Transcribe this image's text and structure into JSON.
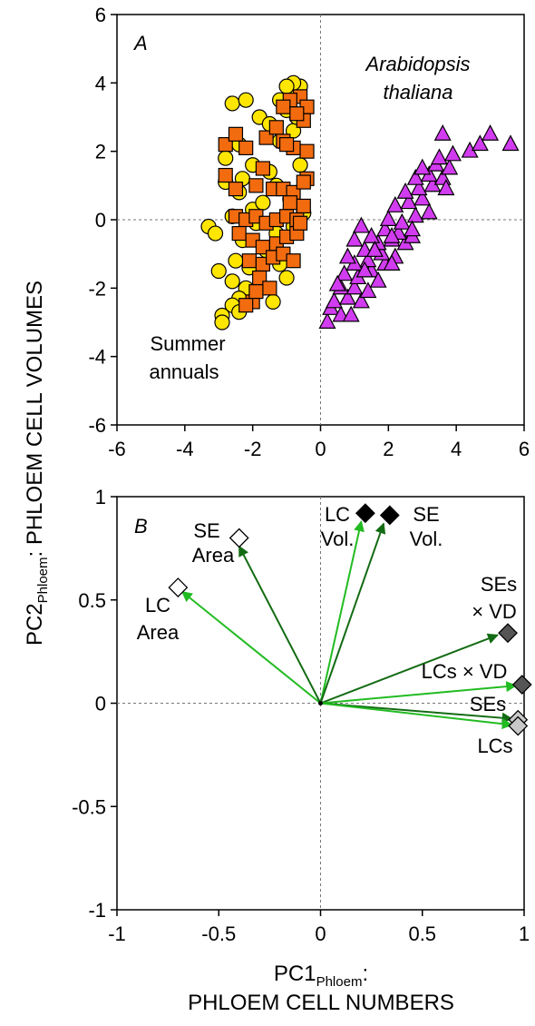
{
  "chart_data": [
    {
      "panel": "A",
      "type": "scatter",
      "xlim": [
        -6,
        6
      ],
      "ylim": [
        -6,
        6
      ],
      "xticks": [
        "-6",
        "-4",
        "-2",
        "0",
        "2",
        "4",
        "6"
      ],
      "yticks": [
        "6",
        "4",
        "2",
        "0",
        "-2",
        "-4",
        "-6"
      ],
      "reference_lines": {
        "x": 0,
        "y": 0,
        "style": "dashed"
      },
      "labels": {
        "arabidopsis_line1": "Arabidopsis",
        "arabidopsis_line2": "thaliana",
        "summer_line1": "Summer",
        "summer_line2": "annuals"
      },
      "colors": {
        "circles": "#ffe600",
        "squares": "#f26b0f",
        "triangles": "#d23cf0"
      },
      "series": [
        {
          "marker": "circle",
          "points": [
            [
              -2.6,
              3.4
            ],
            [
              -2.2,
              3.5
            ],
            [
              -1.8,
              3.0
            ],
            [
              -1.5,
              2.8
            ],
            [
              -2.4,
              2.2
            ],
            [
              -2.0,
              1.6
            ],
            [
              -2.8,
              1.1
            ],
            [
              -2.4,
              0.8
            ],
            [
              -2.0,
              0.3
            ],
            [
              -2.6,
              0.1
            ],
            [
              -3.3,
              -0.2
            ],
            [
              -3.1,
              -0.4
            ],
            [
              -2.3,
              -0.6
            ],
            [
              -2.5,
              -1.2
            ],
            [
              -3.0,
              -1.5
            ],
            [
              -2.6,
              -1.8
            ],
            [
              -2.2,
              -2.0
            ],
            [
              -2.4,
              -2.3
            ],
            [
              -2.6,
              -2.5
            ],
            [
              -2.4,
              -2.7
            ],
            [
              -2.9,
              -2.8
            ],
            [
              -2.9,
              -3.0
            ],
            [
              -1.6,
              -0.9
            ],
            [
              -1.2,
              -1.3
            ],
            [
              -1.3,
              -0.4
            ],
            [
              -1.7,
              0.5
            ],
            [
              -1.3,
              1.0
            ],
            [
              -0.9,
              0.6
            ],
            [
              -0.8,
              -0.2
            ],
            [
              -0.5,
              0.2
            ],
            [
              -1.5,
              1.4
            ],
            [
              -1.2,
              2.3
            ],
            [
              -0.8,
              2.6
            ],
            [
              -0.7,
              3.0
            ],
            [
              -1.0,
              3.2
            ],
            [
              -0.8,
              3.6
            ],
            [
              -0.6,
              3.9
            ],
            [
              -0.8,
              4.0
            ],
            [
              -1.0,
              3.9
            ],
            [
              -1.2,
              3.5
            ],
            [
              -2.1,
              -1.4
            ],
            [
              -1.9,
              -0.1
            ],
            [
              -2.8,
              1.8
            ],
            [
              -2.3,
              1.2
            ],
            [
              -0.6,
              1.6
            ],
            [
              -1.0,
              -1.7
            ],
            [
              -1.4,
              -2.4
            ]
          ]
        },
        {
          "marker": "square",
          "points": [
            [
              -2.8,
              2.2
            ],
            [
              -2.5,
              2.5
            ],
            [
              -2.2,
              2.1
            ],
            [
              -1.7,
              1.5
            ],
            [
              -2.8,
              1.3
            ],
            [
              -2.5,
              0.9
            ],
            [
              -1.9,
              1.0
            ],
            [
              -1.4,
              0.9
            ],
            [
              -1.1,
              0.9
            ],
            [
              -0.8,
              0.8
            ],
            [
              -2.5,
              0.1
            ],
            [
              -2.2,
              0.0
            ],
            [
              -1.9,
              0.1
            ],
            [
              -1.6,
              -0.1
            ],
            [
              -1.3,
              0.0
            ],
            [
              -1.0,
              0.1
            ],
            [
              -0.7,
              0.0
            ],
            [
              -2.4,
              -0.4
            ],
            [
              -2.0,
              -0.6
            ],
            [
              -1.7,
              -0.8
            ],
            [
              -1.3,
              -0.7
            ],
            [
              -1.0,
              -0.5
            ],
            [
              -0.7,
              -0.4
            ],
            [
              -2.1,
              -1.2
            ],
            [
              -1.7,
              -1.3
            ],
            [
              -1.4,
              -1.1
            ],
            [
              -1.1,
              -1.0
            ],
            [
              -0.8,
              -1.2
            ],
            [
              -1.8,
              -1.7
            ],
            [
              -1.5,
              -2.0
            ],
            [
              -2.0,
              -2.4
            ],
            [
              -2.2,
              -2.5
            ],
            [
              -1.9,
              -2.1
            ],
            [
              -0.6,
              -0.1
            ],
            [
              -0.5,
              0.4
            ],
            [
              -0.9,
              0.5
            ],
            [
              -0.4,
              1.2
            ],
            [
              -0.5,
              1.1
            ],
            [
              -0.8,
              2.1
            ],
            [
              -1.1,
              2.3
            ],
            [
              -1.6,
              2.4
            ],
            [
              -0.4,
              2.0
            ],
            [
              -0.6,
              3.6
            ],
            [
              -0.9,
              3.5
            ],
            [
              -1.1,
              3.3
            ],
            [
              -0.4,
              3.3
            ],
            [
              -0.5,
              2.9
            ],
            [
              -0.7,
              3.1
            ],
            [
              -1.0,
              2.2
            ],
            [
              -1.3,
              2.7
            ]
          ]
        },
        {
          "marker": "triangle",
          "points": [
            [
              0.2,
              -3.0
            ],
            [
              0.3,
              -2.6
            ],
            [
              0.6,
              -2.8
            ],
            [
              0.9,
              -2.8
            ],
            [
              0.4,
              -2.4
            ],
            [
              0.8,
              -2.3
            ],
            [
              1.2,
              -2.4
            ],
            [
              0.6,
              -2.0
            ],
            [
              1.0,
              -2.0
            ],
            [
              1.4,
              -2.1
            ],
            [
              0.7,
              -1.6
            ],
            [
              1.1,
              -1.7
            ],
            [
              1.5,
              -1.5
            ],
            [
              1.9,
              -1.3
            ],
            [
              1.0,
              -1.3
            ],
            [
              1.4,
              -1.2
            ],
            [
              1.8,
              -1.0
            ],
            [
              2.2,
              -1.1
            ],
            [
              1.3,
              -0.9
            ],
            [
              1.7,
              -0.7
            ],
            [
              2.1,
              -0.6
            ],
            [
              2.5,
              -0.7
            ],
            [
              1.5,
              -0.5
            ],
            [
              1.9,
              -0.3
            ],
            [
              2.3,
              -0.4
            ],
            [
              2.7,
              -0.5
            ],
            [
              1.2,
              -0.2
            ],
            [
              2.0,
              0.0
            ],
            [
              2.4,
              -0.1
            ],
            [
              2.8,
              0.1
            ],
            [
              2.2,
              0.4
            ],
            [
              2.6,
              0.5
            ],
            [
              3.0,
              0.6
            ],
            [
              2.5,
              0.8
            ],
            [
              2.9,
              0.9
            ],
            [
              3.3,
              1.0
            ],
            [
              2.8,
              1.2
            ],
            [
              3.2,
              1.3
            ],
            [
              3.6,
              1.2
            ],
            [
              3.0,
              1.5
            ],
            [
              3.4,
              1.6
            ],
            [
              3.8,
              1.5
            ],
            [
              3.5,
              1.8
            ],
            [
              3.9,
              1.9
            ],
            [
              4.4,
              2.0
            ],
            [
              4.7,
              2.2
            ],
            [
              5.0,
              2.5
            ],
            [
              5.6,
              2.2
            ],
            [
              3.6,
              2.5
            ],
            [
              1.0,
              -0.6
            ],
            [
              1.3,
              -1.5
            ],
            [
              1.7,
              -1.8
            ],
            [
              2.1,
              -1.3
            ],
            [
              0.8,
              -1.1
            ],
            [
              1.6,
              -0.9
            ],
            [
              2.7,
              -0.3
            ],
            [
              3.2,
              0.2
            ],
            [
              0.5,
              -1.9
            ],
            [
              2.1,
              -0.5
            ],
            [
              3.7,
              0.9
            ]
          ]
        }
      ]
    },
    {
      "panel": "B",
      "type": "scatter",
      "xlim": [
        -1,
        1
      ],
      "ylim": [
        -1,
        1
      ],
      "xticks": [
        "-1",
        "-0.5",
        "0",
        "0.5",
        "1"
      ],
      "yticks": [
        "1",
        "0.5",
        "0",
        "-0.5",
        "-1"
      ],
      "reference_lines": {
        "x": 0,
        "y": 0,
        "style": "dashed"
      },
      "colors": {
        "light_arrow": "#22bb22",
        "dark_arrow": "#136b13",
        "white_marker": "#ffffff",
        "black_marker": "#000000",
        "dark_gray_marker": "#555555",
        "light_gray_marker": "#c8c8c8"
      },
      "vectors": [
        {
          "name": "LC Area",
          "x": -0.7,
          "y": 0.56,
          "arrow_end": [
            -0.68,
            0.54
          ],
          "arrow": "light",
          "fill": "white"
        },
        {
          "name": "SE Area",
          "x": -0.4,
          "y": 0.8,
          "arrow_end": [
            -0.4,
            0.76
          ],
          "arrow": "dark",
          "fill": "white"
        },
        {
          "name": "LC Vol.",
          "x": 0.22,
          "y": 0.92,
          "arrow_end": [
            0.2,
            0.88
          ],
          "arrow": "light",
          "fill": "black"
        },
        {
          "name": "SE Vol.",
          "x": 0.34,
          "y": 0.91,
          "arrow_end": [
            0.31,
            0.87
          ],
          "arrow": "dark",
          "fill": "black"
        },
        {
          "name": "SEs × VD",
          "x": 0.92,
          "y": 0.34,
          "arrow_end": [
            0.87,
            0.33
          ],
          "arrow": "dark",
          "fill": "darkgray"
        },
        {
          "name": "LCs × VD",
          "x": 0.99,
          "y": 0.09,
          "arrow_end": [
            0.96,
            0.085
          ],
          "arrow": "light",
          "fill": "darkgray"
        },
        {
          "name": "SEs",
          "x": 0.97,
          "y": -0.08,
          "arrow_end": [
            0.94,
            -0.075
          ],
          "arrow": "dark",
          "fill": "lightgray"
        },
        {
          "name": "LCs",
          "x": 0.97,
          "y": -0.11,
          "arrow_end": [
            0.94,
            -0.105
          ],
          "arrow": "light",
          "fill": "lightgray"
        }
      ],
      "labels": {
        "se_area_1": "SE",
        "se_area_2": "Area",
        "lc_area_1": "LC",
        "lc_area_2": "Area",
        "lc_vol_1": "LC",
        "lc_vol_2": "Vol.",
        "se_vol_1": "SE",
        "se_vol_2": "Vol.",
        "ses_vd_1": "SEs",
        "ses_vd_2": "× VD",
        "lcs_vd": "LCs × VD",
        "ses": "SEs",
        "lcs": "LCs"
      }
    }
  ],
  "panel_labels": {
    "a": "A",
    "b": "B"
  },
  "axes": {
    "ylabel_main": "PC2",
    "ylabel_sub": "Phloem",
    "ylabel_rest": ": PHLOEM CELL VOLUMES",
    "xlabel_main": "PC1",
    "xlabel_sub": "Phloem",
    "xlabel_colon": ":",
    "xlabel_line2": "PHLOEM CELL NUMBERS"
  }
}
